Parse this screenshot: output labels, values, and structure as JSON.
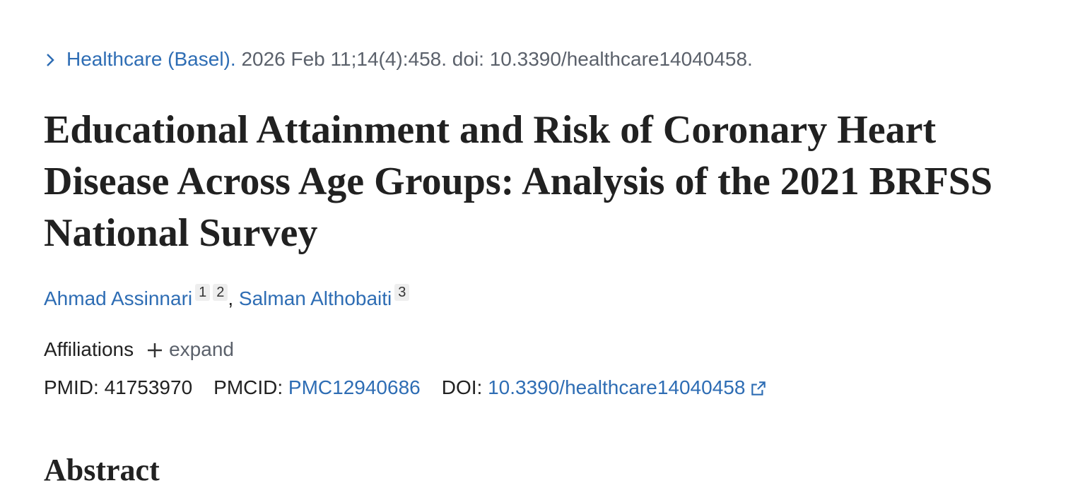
{
  "citation": {
    "journal": "Healthcare (Basel).",
    "details": "2026 Feb 11;14(4):458. doi: 10.3390/healthcare14040458."
  },
  "title": "Educational Attainment and Risk of Coronary Heart Disease Across Age Groups: Analysis of the 2021 BRFSS National Survey",
  "authors": [
    {
      "name": "Ahmad Assinnari",
      "affiliations": [
        "1",
        "2"
      ]
    },
    {
      "name": "Salman Althobaiti",
      "affiliations": [
        "3"
      ]
    }
  ],
  "author_separator": ",",
  "affiliations": {
    "label": "Affiliations",
    "toggle": "expand"
  },
  "identifiers": [
    {
      "label": "PMID:",
      "value": "41753970"
    },
    {
      "label": "PMCID:",
      "value": "PMC12940686"
    },
    {
      "label": "DOI:",
      "value": "10.3390/healthcare14040458"
    }
  ],
  "section_heading": "Abstract"
}
